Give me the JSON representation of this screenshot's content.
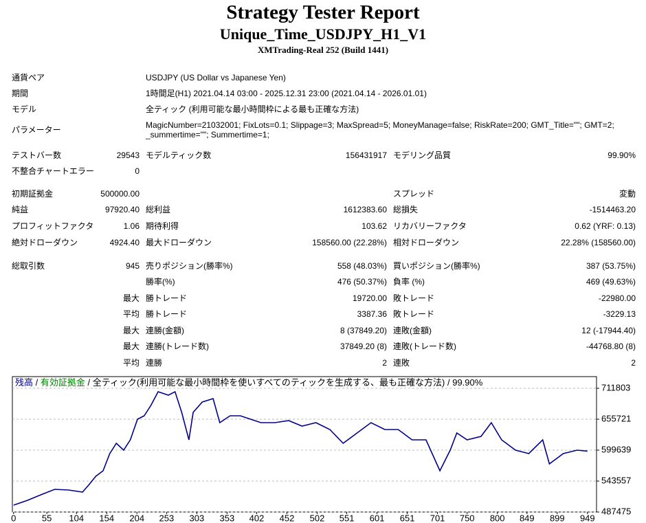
{
  "header": {
    "title": "Strategy Tester Report",
    "subtitle": "Unique_Time_USDJPY_H1_V1",
    "build": "XMTrading-Real 252 (Build 1441)"
  },
  "info": [
    {
      "label": "通貨ペア",
      "value": "USDJPY (US Dollar vs Japanese Yen)"
    },
    {
      "label": "期間",
      "value": "1時間足(H1) 2021.04.14 03:00 - 2025.12.31 23:00 (2021.04.14 - 2026.01.01)"
    },
    {
      "label": "モデル",
      "value": "全ティック (利用可能な最小時間枠による最も正確な方法)"
    },
    {
      "label": "パラメーター",
      "value": "MagicNumber=21032001; FixLots=0.1; Slippage=3; MaxSpread=5; MoneyManage=false; RiskRate=200; GMT_Title=\"\"; GMT=2; _summertime=\"\"; Summertime=1;"
    }
  ],
  "stats": [
    [
      "テストバー数",
      "29543",
      "モデルティック数",
      "156431917",
      "モデリング品質",
      "99.90%"
    ],
    [
      "不整合チャートエラー",
      "0",
      null,
      null,
      null,
      null
    ],
    [
      "初期証拠金",
      "500000.00",
      null,
      null,
      "スプレッド",
      "変動"
    ],
    [
      "純益",
      "97920.40",
      "総利益",
      "1612383.60",
      "総損失",
      "-1514463.20"
    ],
    [
      "プロフィットファクタ",
      "1.06",
      "期待利得",
      "103.62",
      "リカバリーファクタ",
      "0.62 (YRF: 0.13)"
    ],
    [
      "絶対ドローダウン",
      "4924.40",
      "最大ドローダウン",
      "158560.00 (22.28%)",
      "相対ドローダウン",
      "22.28% (158560.00)"
    ],
    [
      "総取引数",
      "945",
      "売りポジション(勝率%)",
      "558 (48.03%)",
      "買いポジション(勝率%)",
      "387 (53.75%)"
    ],
    [
      null,
      null,
      "勝率(%)",
      "476 (50.37%)",
      "負率 (%)",
      "469 (49.63%)"
    ],
    [
      null,
      "最大",
      "勝トレード",
      "19720.00",
      "敗トレード",
      "-22980.00"
    ],
    [
      null,
      "平均",
      "勝トレード",
      "3387.36",
      "敗トレード",
      "-3229.13"
    ],
    [
      null,
      "最大",
      "連勝(金額)",
      "8 (37849.20)",
      "連敗(金額)",
      "12 (-17944.40)"
    ],
    [
      null,
      "最大",
      "連勝(トレード数)",
      "37849.20 (8)",
      "連敗(トレード数)",
      "-44768.80 (8)"
    ],
    [
      null,
      "平均",
      "連勝",
      "2",
      "連敗",
      "2"
    ]
  ],
  "chart_data": {
    "type": "line",
    "legend": [
      {
        "text": " / ",
        "color": "#000000"
      },
      {
        "text": "有効証拠金",
        "color": "#008000"
      },
      {
        "text": " / 全ティック(利用可能な最小時間枠を使いすべてのティックを生成する、最も正確な方法) / 99.90%",
        "color": "#000000"
      }
    ],
    "x": [
      0,
      23,
      45,
      68,
      91,
      114,
      125,
      136,
      148,
      159,
      170,
      182,
      193,
      205,
      216,
      227,
      239,
      256,
      267,
      278,
      290,
      297,
      312,
      330,
      341,
      358,
      375,
      392,
      409,
      432,
      455,
      477,
      500,
      523,
      545,
      568,
      591,
      614,
      636,
      659,
      682,
      705,
      722,
      733,
      750,
      773,
      790,
      807,
      830,
      852,
      875,
      886,
      909,
      932,
      949
    ],
    "series": [
      {
        "name": "残高",
        "color": "#00008b",
        "values": [
          500000,
          508650,
          518630,
          528600,
          527350,
          523610,
          537320,
          552280,
          562250,
          593400,
          612100,
          599640,
          618330,
          655720,
          661950,
          680650,
          705570,
          699340,
          705570,
          668180,
          618330,
          668180,
          686880,
          693110,
          649490,
          661950,
          661950,
          655720,
          649490,
          649490,
          653230,
          643260,
          649490,
          637030,
          612100,
          630790,
          649490,
          637030,
          637030,
          618330,
          618330,
          562250,
          599640,
          630790,
          618330,
          624560,
          649490,
          618330,
          599640,
          593400,
          618330,
          574710,
          593400,
          599640,
          597920
        ]
      }
    ],
    "xlim": [
      -2,
      964
    ],
    "ylim": [
      487475,
      733000
    ],
    "xticks": [
      0,
      55,
      104,
      154,
      204,
      253,
      303,
      353,
      402,
      452,
      502,
      551,
      601,
      651,
      701,
      750,
      800,
      849,
      899,
      949
    ],
    "yticks": [
      487475,
      543557,
      599639,
      655721,
      711803
    ],
    "grid": true
  }
}
